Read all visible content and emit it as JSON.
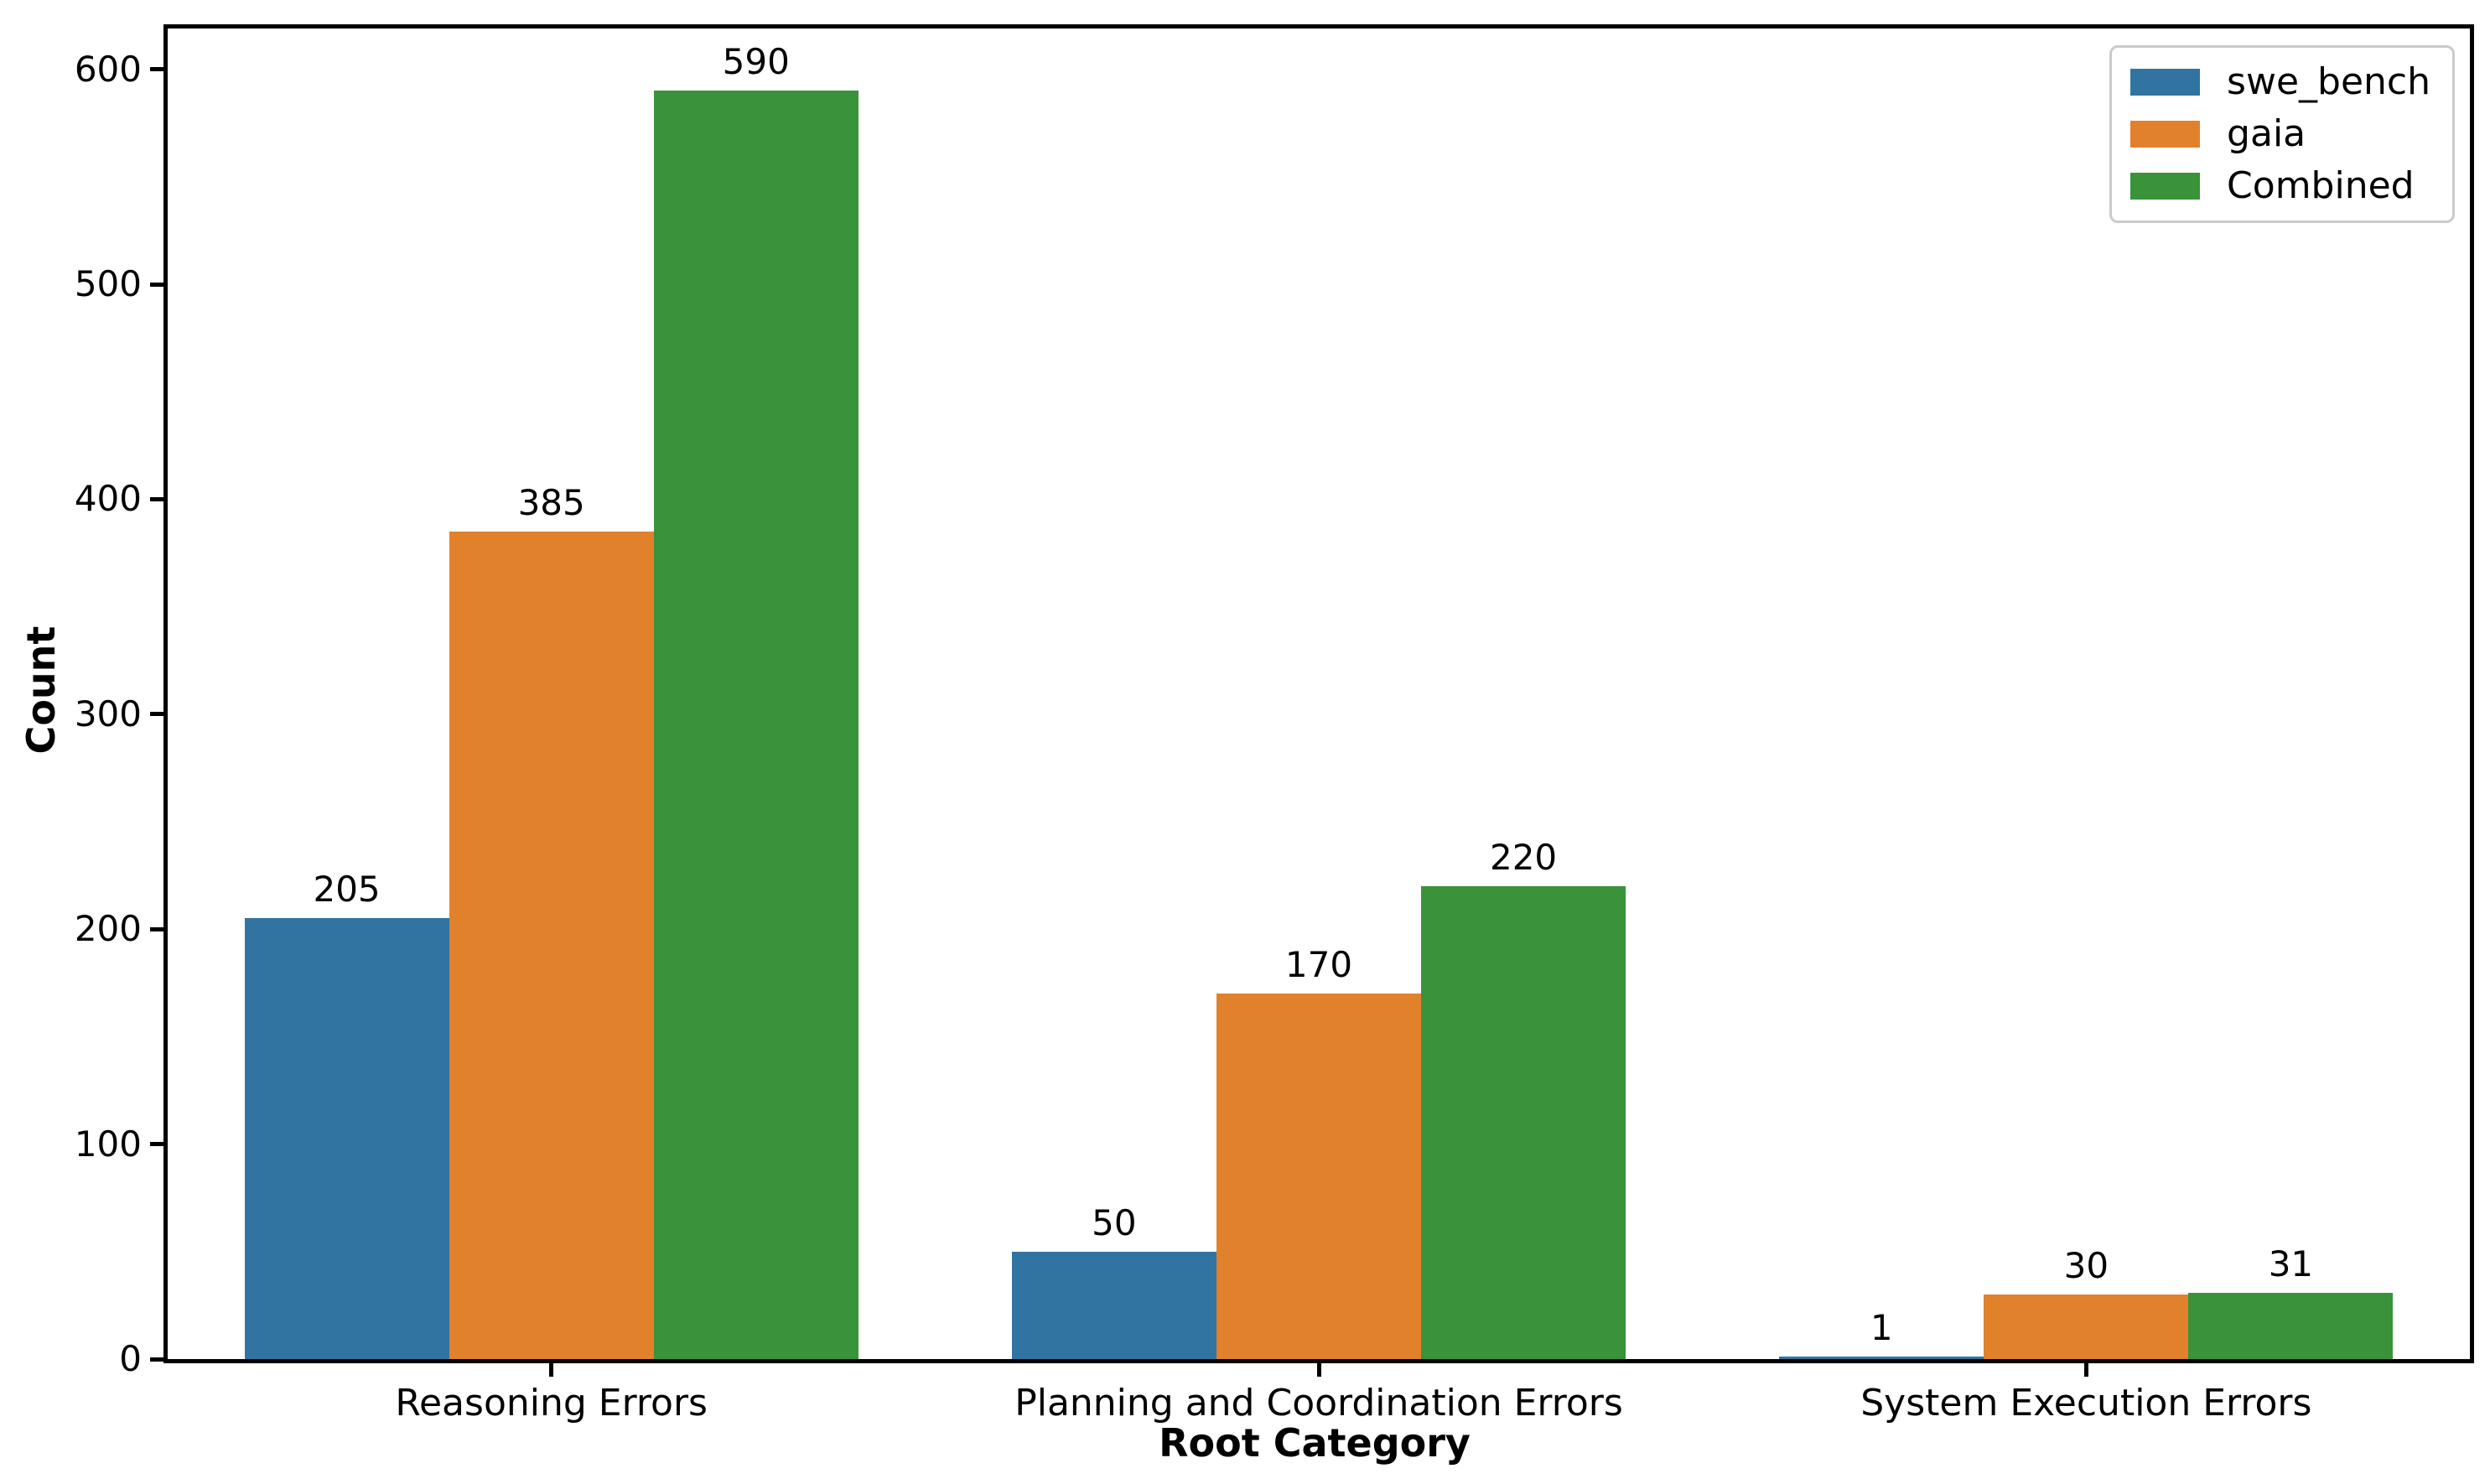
{
  "chart_data": {
    "type": "bar",
    "title": "",
    "xlabel": "Root Category",
    "ylabel": "Count",
    "categories": [
      "Reasoning Errors",
      "Planning and Coordination Errors",
      "System Execution Errors"
    ],
    "series": [
      {
        "name": "swe_bench",
        "color": "#3274a1",
        "values": [
          205,
          50,
          1
        ]
      },
      {
        "name": "gaia",
        "color": "#e1812c",
        "values": [
          385,
          170,
          30
        ]
      },
      {
        "name": "Combined",
        "color": "#3a923a",
        "values": [
          590,
          220,
          31
        ]
      }
    ],
    "bar_value_labels_shown": true,
    "yticks": [
      0,
      100,
      200,
      300,
      400,
      500,
      600
    ],
    "ylim": [
      0,
      619
    ],
    "grid": false,
    "legend": {
      "position": "upper right",
      "entries": [
        "swe_bench",
        "gaia",
        "Combined"
      ]
    },
    "colors": {
      "background": "#ffffff",
      "axis": "#000000",
      "legend_border": "#cbcbcb"
    }
  }
}
